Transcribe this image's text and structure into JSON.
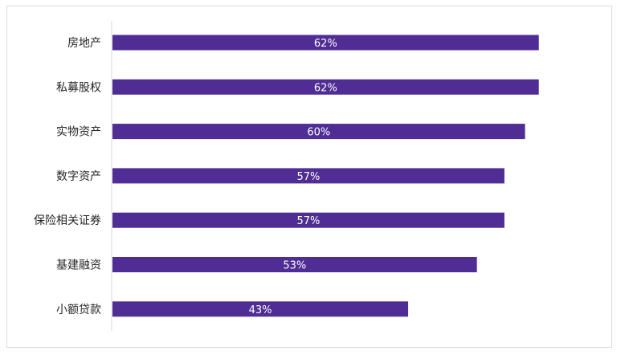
{
  "chart_data": {
    "type": "bar",
    "orientation": "horizontal",
    "categories": [
      "房地产",
      "私募股权",
      "实物资产",
      "数字资产",
      "保险相关证券",
      "基建融资",
      "小额贷款"
    ],
    "values": [
      62,
      62,
      60,
      57,
      57,
      53,
      43
    ],
    "value_labels": [
      "62%",
      "62%",
      "60%",
      "57%",
      "57%",
      "53%",
      "43%"
    ],
    "unit": "%",
    "xlim": [
      0,
      75
    ],
    "grid": false,
    "bar_color": "#4f2d94"
  }
}
